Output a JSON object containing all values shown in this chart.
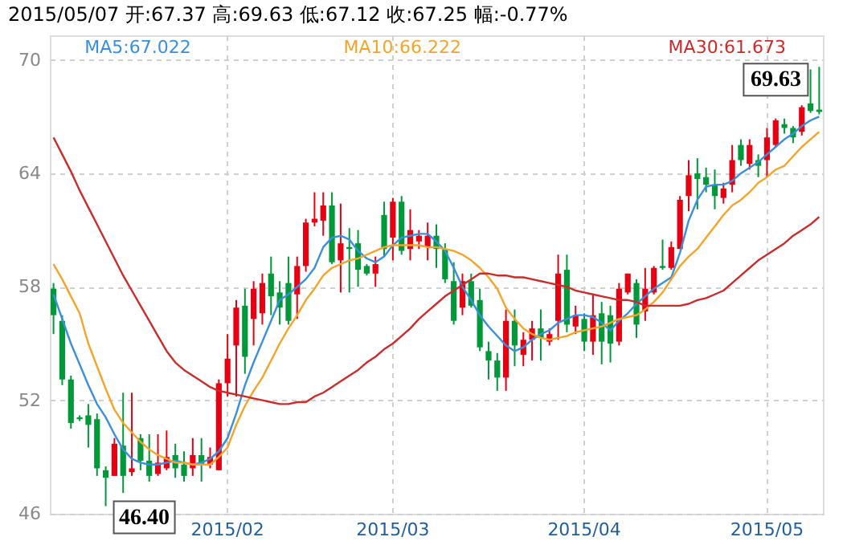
{
  "chart_data": {
    "type": "candlestick",
    "title": "2015/05/07  开:67.37  高:69.63  低:67.12  收:67.25  幅:-0.77%",
    "categories": [
      null,
      null,
      null,
      null,
      null,
      null,
      null,
      null,
      null,
      null,
      null,
      null,
      null,
      null,
      null,
      null,
      null,
      null,
      null,
      null,
      "2015/02",
      null,
      null,
      null,
      null,
      null,
      null,
      null,
      null,
      null,
      null,
      null,
      null,
      null,
      null,
      null,
      null,
      null,
      null,
      "2015/03",
      null,
      null,
      null,
      null,
      null,
      null,
      null,
      null,
      null,
      null,
      null,
      null,
      null,
      null,
      null,
      null,
      null,
      null,
      null,
      null,
      null,
      "2015/04",
      null,
      null,
      null,
      null,
      null,
      null,
      null,
      null,
      null,
      null,
      null,
      null,
      null,
      null,
      null,
      null,
      null,
      null,
      null,
      null,
      "2015/05",
      null,
      null,
      null,
      null,
      null,
      null
    ],
    "ohlc": [
      [
        57.9,
        58.2,
        55.5,
        56.5
      ],
      [
        56.2,
        56.5,
        52.8,
        53.1
      ],
      [
        53.1,
        53.3,
        50.5,
        50.8
      ],
      [
        51.1,
        51.2,
        50.9,
        51.0
      ],
      [
        51.2,
        51.8,
        49.5,
        50.7
      ],
      [
        51.0,
        51.3,
        48.0,
        48.4
      ],
      [
        48.3,
        48.5,
        46.4,
        47.9
      ],
      [
        48.0,
        50.0,
        48.0,
        49.7
      ],
      [
        49.6,
        52.4,
        47.1,
        48.0
      ],
      [
        48.2,
        52.4,
        48.0,
        48.4
      ],
      [
        50.0,
        50.2,
        48.3,
        48.8
      ],
      [
        48.8,
        50.2,
        47.7,
        48.0
      ],
      [
        48.1,
        50.2,
        48.0,
        48.7
      ],
      [
        48.4,
        50.4,
        48.3,
        49.0
      ],
      [
        49.1,
        49.7,
        47.9,
        48.4
      ],
      [
        48.6,
        49.3,
        47.7,
        48.0
      ],
      [
        48.4,
        50.0,
        48.0,
        49.1
      ],
      [
        49.1,
        50.0,
        47.7,
        48.6
      ],
      [
        48.6,
        49.5,
        48.4,
        49.0
      ],
      [
        48.3,
        53.1,
        48.3,
        52.9
      ],
      [
        52.9,
        55.5,
        52.2,
        54.2
      ],
      [
        54.9,
        57.3,
        52.2,
        56.9
      ],
      [
        57.0,
        57.9,
        53.4,
        54.3
      ],
      [
        56.3,
        58.3,
        54.9,
        57.9
      ],
      [
        56.6,
        58.7,
        56.0,
        58.2
      ],
      [
        58.7,
        59.6,
        56.5,
        57.5
      ],
      [
        57.7,
        58.3,
        56.0,
        56.9
      ],
      [
        58.2,
        59.6,
        56.0,
        56.2
      ],
      [
        57.6,
        59.6,
        56.3,
        59.1
      ],
      [
        59.1,
        61.6,
        58.8,
        61.4
      ],
      [
        61.4,
        63.0,
        61.2,
        61.6
      ],
      [
        61.5,
        63.0,
        60.7,
        62.3
      ],
      [
        62.3,
        63.0,
        59.2,
        59.3
      ],
      [
        59.4,
        62.4,
        57.7,
        60.3
      ],
      [
        60.1,
        61.1,
        57.7,
        60.0
      ],
      [
        60.3,
        61.0,
        58.0,
        58.9
      ],
      [
        59.1,
        59.2,
        58.6,
        58.7
      ],
      [
        58.7,
        59.6,
        58.0,
        59.2
      ],
      [
        61.8,
        62.5,
        59.6,
        60.0
      ],
      [
        60.6,
        62.7,
        59.4,
        62.5
      ],
      [
        62.5,
        62.8,
        59.7,
        59.9
      ],
      [
        60.0,
        62.1,
        59.4,
        61.0
      ],
      [
        60.4,
        61.0,
        60.0,
        60.7
      ],
      [
        60.1,
        61.4,
        59.4,
        60.7
      ],
      [
        60.7,
        61.3,
        59.0,
        60.0
      ],
      [
        60.0,
        60.3,
        58.2,
        58.4
      ],
      [
        58.3,
        59.3,
        56.0,
        56.2
      ],
      [
        56.9,
        58.7,
        56.5,
        58.3
      ],
      [
        58.3,
        58.7,
        56.9,
        57.0
      ],
      [
        57.3,
        57.9,
        54.6,
        54.8
      ],
      [
        54.6,
        55.1,
        53.1,
        54.1
      ],
      [
        54.1,
        54.5,
        52.5,
        53.2
      ],
      [
        53.2,
        56.8,
        52.5,
        56.2
      ],
      [
        56.2,
        56.8,
        53.8,
        54.9
      ],
      [
        54.4,
        55.6,
        53.8,
        55.2
      ],
      [
        55.2,
        56.2,
        54.1,
        55.8
      ],
      [
        55.8,
        56.8,
        54.1,
        55.3
      ],
      [
        55.1,
        55.8,
        54.9,
        55.5
      ],
      [
        56.2,
        59.7,
        55.2,
        58.7
      ],
      [
        58.9,
        59.7,
        55.6,
        56.0
      ],
      [
        55.9,
        57.0,
        55.5,
        56.5
      ],
      [
        56.3,
        56.6,
        54.6,
        55.1
      ],
      [
        55.1,
        57.6,
        54.4,
        56.5
      ],
      [
        56.6,
        57.2,
        53.9,
        55.1
      ],
      [
        56.5,
        57.0,
        54.0,
        55.0
      ],
      [
        55.1,
        58.2,
        54.9,
        57.9
      ],
      [
        57.7,
        58.7,
        57.6,
        58.7
      ],
      [
        58.2,
        58.4,
        55.3,
        56.0
      ],
      [
        56.7,
        59.0,
        56.2,
        57.9
      ],
      [
        57.7,
        59.1,
        57.6,
        59.0
      ],
      [
        59.1,
        60.5,
        58.9,
        59.0
      ],
      [
        59.0,
        60.4,
        58.9,
        60.1
      ],
      [
        60.0,
        62.8,
        60.0,
        62.6
      ],
      [
        62.8,
        64.7,
        62.0,
        63.9
      ],
      [
        64.0,
        64.8,
        62.1,
        63.7
      ],
      [
        63.8,
        64.3,
        63.0,
        63.4
      ],
      [
        63.4,
        64.2,
        62.1,
        62.8
      ],
      [
        62.7,
        63.5,
        62.4,
        63.2
      ],
      [
        63.4,
        65.5,
        63.0,
        64.7
      ],
      [
        65.5,
        65.8,
        64.4,
        64.7
      ],
      [
        64.5,
        65.8,
        64.2,
        65.5
      ],
      [
        64.7,
        65.0,
        63.8,
        64.4
      ],
      [
        64.7,
        66.4,
        63.8,
        65.9
      ],
      [
        65.5,
        66.9,
        65.4,
        66.8
      ],
      [
        66.6,
        66.9,
        66.1,
        66.4
      ],
      [
        66.4,
        66.5,
        65.6,
        65.9
      ],
      [
        66.2,
        67.6,
        66.0,
        67.5
      ],
      [
        67.7,
        69.5,
        67.2,
        67.3
      ],
      [
        67.37,
        69.63,
        67.12,
        67.25
      ]
    ],
    "colors": [
      "#00993a",
      "#00993a",
      "#00993a",
      "#00993a",
      "#00993a",
      "#00993a",
      "#00993a",
      "#e60012",
      "#00993a",
      "#e60012",
      "#00993a",
      "#00993a",
      "#e60012",
      "#e60012",
      "#00993a",
      "#00993a",
      "#e60012",
      "#00993a",
      "#e60012",
      "#e60012",
      "#e60012",
      "#e60012",
      "#00993a",
      "#e60012",
      "#e60012",
      "#00993a",
      "#00993a",
      "#00993a",
      "#e60012",
      "#e60012",
      "#e60012",
      "#e60012",
      "#00993a",
      "#e60012",
      "#00993a",
      "#00993a",
      "#00993a",
      "#e60012",
      "#00993a",
      "#e60012",
      "#00993a",
      "#e60012",
      "#e60012",
      "#e60012",
      "#00993a",
      "#00993a",
      "#00993a",
      "#e60012",
      "#00993a",
      "#00993a",
      "#00993a",
      "#00993a",
      "#e60012",
      "#00993a",
      "#e60012",
      "#e60012",
      "#00993a",
      "#e60012",
      "#e60012",
      "#00993a",
      "#e60012",
      "#00993a",
      "#e60012",
      "#00993a",
      "#00993a",
      "#e60012",
      "#e60012",
      "#00993a",
      "#e60012",
      "#e60012",
      "#00993a",
      "#e60012",
      "#e60012",
      "#e60012",
      "#00993a",
      "#00993a",
      "#00993a",
      "#e60012",
      "#e60012",
      "#00993a",
      "#e60012",
      "#00993a",
      "#e60012",
      "#e60012",
      "#00993a",
      "#00993a",
      "#e60012",
      "#00993a",
      "#00993a"
    ],
    "series": [
      {
        "name": "MA5:67.022",
        "type": "line",
        "color": "#3a8fdc",
        "values": [
          57.6,
          56.3,
          55.0,
          53.9,
          52.8,
          51.8,
          51.1,
          50.2,
          49.4,
          48.9,
          48.7,
          48.6,
          48.6,
          48.7,
          48.8,
          48.7,
          48.6,
          48.7,
          48.9,
          49.3,
          50.0,
          51.3,
          52.8,
          54.0,
          55.1,
          56.2,
          57.3,
          57.6,
          58.0,
          58.4,
          59.0,
          60.1,
          60.6,
          60.7,
          60.5,
          59.9,
          59.5,
          59.3,
          59.6,
          60.2,
          60.6,
          60.7,
          60.8,
          60.8,
          60.4,
          59.9,
          59.0,
          58.0,
          57.3,
          56.5,
          55.9,
          55.4,
          54.9,
          54.6,
          54.8,
          55.2,
          55.5,
          55.7,
          56.1,
          56.3,
          56.5,
          56.5,
          56.4,
          56.1,
          55.7,
          56.2,
          56.6,
          57.1,
          57.5,
          57.9,
          58.2,
          58.5,
          59.8,
          61.5,
          62.6,
          63.3,
          63.4,
          63.4,
          63.6,
          64.0,
          64.3,
          64.6,
          65.0,
          65.4,
          65.8,
          66.1,
          66.5,
          66.8,
          67.0
        ]
      },
      {
        "name": "MA10:66.222",
        "type": "line",
        "color": "#f5a42a",
        "values": [
          59.2,
          58.4,
          57.5,
          56.6,
          55.0,
          53.8,
          52.6,
          51.5,
          50.8,
          50.3,
          49.8,
          49.4,
          49.1,
          48.9,
          48.7,
          48.7,
          48.6,
          48.6,
          48.6,
          49.0,
          49.5,
          50.7,
          51.7,
          52.5,
          53.2,
          54.1,
          55.0,
          55.8,
          56.5,
          57.3,
          57.9,
          58.6,
          59.0,
          59.2,
          59.4,
          59.5,
          59.7,
          59.9,
          60.1,
          60.2,
          60.2,
          60.2,
          60.2,
          60.1,
          60.1,
          60.0,
          59.9,
          59.7,
          59.4,
          59.0,
          58.5,
          57.9,
          56.9,
          56.3,
          55.8,
          55.5,
          55.3,
          55.2,
          55.3,
          55.4,
          55.6,
          55.7,
          55.8,
          55.9,
          56.1,
          56.3,
          56.4,
          56.5,
          56.8,
          57.2,
          57.7,
          58.4,
          59.1,
          59.6,
          60.0,
          60.6,
          61.2,
          61.8,
          62.3,
          62.6,
          63.0,
          63.5,
          63.8,
          64.2,
          64.4,
          64.9,
          65.4,
          65.8,
          66.2
        ]
      },
      {
        "name": "MA30:61.673",
        "type": "line",
        "color": "#cc2b2b",
        "values": [
          65.9,
          65.0,
          64.1,
          63.1,
          62.2,
          61.3,
          60.4,
          59.5,
          58.6,
          57.8,
          57.0,
          56.2,
          55.4,
          54.6,
          54.0,
          53.6,
          53.3,
          53.0,
          52.7,
          52.5,
          52.4,
          52.3,
          52.2,
          52.1,
          52.0,
          51.9,
          51.8,
          51.8,
          51.9,
          51.9,
          52.2,
          52.4,
          52.7,
          53.0,
          53.3,
          53.6,
          54.0,
          54.3,
          54.7,
          55.0,
          55.4,
          55.8,
          56.3,
          56.7,
          57.1,
          57.5,
          57.8,
          58.1,
          58.4,
          58.7,
          58.7,
          58.6,
          58.6,
          58.5,
          58.5,
          58.4,
          58.3,
          58.2,
          58.1,
          58.0,
          57.8,
          57.7,
          57.6,
          57.5,
          57.4,
          57.3,
          57.3,
          57.2,
          57.0,
          57.0,
          57.0,
          57.0,
          57.0,
          57.1,
          57.3,
          57.4,
          57.6,
          57.8,
          58.2,
          58.6,
          59.0,
          59.4,
          59.7,
          60.0,
          60.3,
          60.7,
          61.0,
          61.3,
          61.7
        ]
      }
    ],
    "ylim": [
      46,
      71.3
    ],
    "yticks": [
      46,
      52,
      58,
      64,
      70
    ],
    "grid": true,
    "legend": "top",
    "annotations": [
      "69.63",
      "46.40"
    ]
  }
}
